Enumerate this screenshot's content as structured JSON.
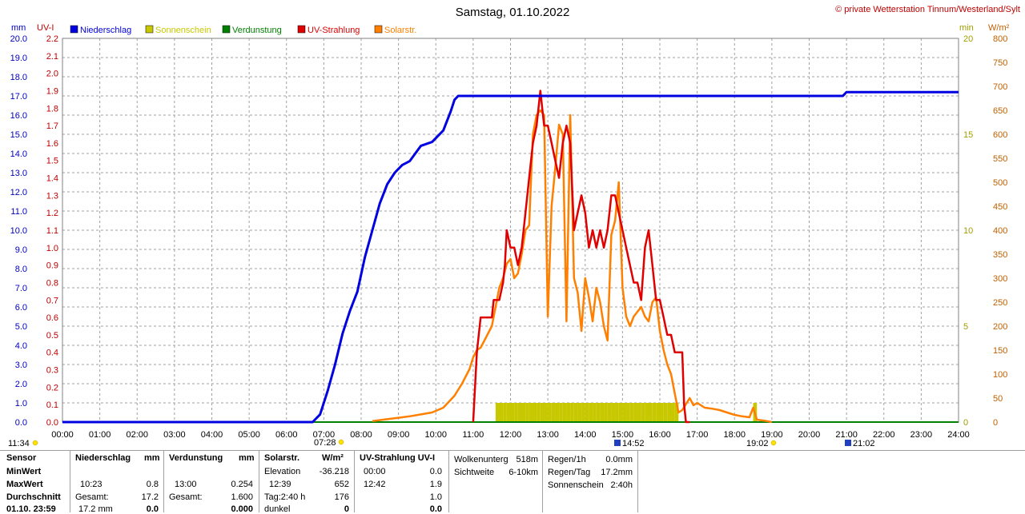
{
  "header": {
    "title": "Samstag, 01.10.2022",
    "copyright": "© private Wetterstation Tinnum/Westerland/Sylt",
    "left_unit_mm": "mm",
    "left_unit_uv": "UV-I",
    "right_unit_min": "min",
    "right_unit_wm2": "W/m²"
  },
  "legend": [
    {
      "label": "Niederschlag",
      "color": "#0000e0"
    },
    {
      "label": "Sonnenschein",
      "color": "#c8c800"
    },
    {
      "label": "Verdunstung",
      "color": "#008000"
    },
    {
      "label": "UV-Strahlung",
      "color": "#e00000"
    },
    {
      "label": "Solarstr.",
      "color": "#ff8000"
    }
  ],
  "chart_data": {
    "type": "line",
    "x_ticks": [
      "00:00",
      "01:00",
      "02:00",
      "03:00",
      "04:00",
      "05:00",
      "06:00",
      "07:00",
      "08:00",
      "09:00",
      "10:00",
      "11:00",
      "12:00",
      "13:00",
      "14:00",
      "15:00",
      "16:00",
      "17:00",
      "18:00",
      "19:00",
      "20:00",
      "21:00",
      "22:00",
      "23:00",
      "24:00"
    ],
    "axis_mm": {
      "min": 0,
      "max": 20,
      "ticks": [
        "0.0",
        "1.0",
        "2.0",
        "3.0",
        "4.0",
        "5.0",
        "6.0",
        "7.0",
        "8.0",
        "9.0",
        "10.0",
        "11.0",
        "12.0",
        "13.0",
        "14.0",
        "15.0",
        "16.0",
        "17.0",
        "18.0",
        "19.0",
        "20.0"
      ]
    },
    "axis_uv": {
      "min": 0,
      "max": 2.2,
      "ticks": [
        "0.0",
        "0.1",
        "0.2",
        "0.3",
        "0.4",
        "0.5",
        "0.6",
        "0.7",
        "0.8",
        "0.9",
        "1.0",
        "1.1",
        "1.2",
        "1.3",
        "1.4",
        "1.5",
        "1.6",
        "1.7",
        "1.8",
        "1.9",
        "2.0",
        "2.1",
        "2.2"
      ]
    },
    "axis_min": {
      "min": 0,
      "max": 20,
      "ticks": [
        "0",
        "5",
        "10",
        "15",
        "20"
      ]
    },
    "axis_wm2": {
      "min": 0,
      "max": 800,
      "ticks": [
        "0",
        "50",
        "100",
        "150",
        "200",
        "250",
        "300",
        "350",
        "400",
        "450",
        "500",
        "550",
        "600",
        "650",
        "700",
        "750",
        "800"
      ]
    },
    "grid": true,
    "series": [
      {
        "name": "Niederschlag",
        "axis": "mm",
        "color": "#0000e0",
        "x": [
          0,
          6.7,
          6.9,
          7.1,
          7.3,
          7.5,
          7.7,
          7.9,
          8.1,
          8.3,
          8.5,
          8.7,
          8.9,
          9.1,
          9.3,
          9.6,
          9.9,
          10.2,
          10.4,
          10.5,
          10.6,
          20.9,
          21.0,
          24.0
        ],
        "values": [
          0,
          0,
          0.4,
          1.6,
          3.0,
          4.6,
          5.8,
          6.8,
          8.6,
          10.0,
          11.4,
          12.4,
          13.0,
          13.4,
          13.6,
          14.4,
          14.6,
          15.2,
          16.2,
          16.8,
          17.0,
          17.0,
          17.2,
          17.2
        ]
      },
      {
        "name": "Solarstr.",
        "axis": "wm2",
        "color": "#ff8000",
        "x": [
          8.3,
          8.7,
          9.0,
          9.3,
          9.6,
          9.9,
          10.2,
          10.5,
          10.7,
          10.9,
          11.0,
          11.1,
          11.2,
          11.3,
          11.5,
          11.7,
          11.8,
          11.9,
          12.0,
          12.1,
          12.2,
          12.3,
          12.4,
          12.5,
          12.6,
          12.7,
          12.8,
          12.9,
          13.0,
          13.1,
          13.2,
          13.3,
          13.4,
          13.5,
          13.6,
          13.7,
          13.8,
          13.9,
          14.0,
          14.1,
          14.2,
          14.3,
          14.4,
          14.5,
          14.6,
          14.7,
          14.8,
          14.9,
          15.0,
          15.1,
          15.2,
          15.3,
          15.4,
          15.5,
          15.6,
          15.7,
          15.8,
          15.9,
          16.0,
          16.1,
          16.2,
          16.3,
          16.4,
          16.5,
          16.6,
          16.8,
          16.9,
          17.0,
          17.2,
          17.4,
          17.6,
          17.8,
          18.0,
          18.2,
          18.4,
          18.5,
          18.6,
          18.8,
          19.0
        ],
        "values": [
          2,
          6,
          9,
          12,
          16,
          20,
          30,
          55,
          80,
          110,
          135,
          150,
          155,
          170,
          200,
          280,
          300,
          330,
          340,
          300,
          310,
          350,
          400,
          410,
          600,
          640,
          650,
          640,
          220,
          450,
          530,
          620,
          600,
          210,
          640,
          300,
          270,
          190,
          300,
          260,
          210,
          280,
          250,
          200,
          170,
          390,
          420,
          500,
          280,
          220,
          200,
          220,
          230,
          240,
          220,
          210,
          250,
          260,
          190,
          150,
          120,
          100,
          60,
          20,
          25,
          50,
          35,
          40,
          30,
          28,
          25,
          20,
          15,
          12,
          10,
          30,
          5,
          3,
          0
        ]
      },
      {
        "name": "UV-Strahlung",
        "axis": "uv",
        "color": "#e00000",
        "x": [
          11.0,
          11.1,
          11.2,
          11.5,
          11.55,
          11.7,
          11.8,
          11.85,
          11.9,
          12.0,
          12.1,
          12.2,
          12.3,
          12.4,
          12.5,
          12.6,
          12.7,
          12.8,
          12.85,
          12.9,
          13.0,
          13.1,
          13.2,
          13.3,
          13.4,
          13.5,
          13.6,
          13.7,
          13.8,
          13.9,
          14.0,
          14.1,
          14.2,
          14.3,
          14.4,
          14.5,
          14.6,
          14.7,
          14.8,
          14.9,
          15.0,
          15.1,
          15.2,
          15.3,
          15.4,
          15.5,
          15.6,
          15.7,
          15.8,
          15.9,
          16.0,
          16.1,
          16.2,
          16.3,
          16.4,
          16.5,
          16.6,
          16.65,
          16.7,
          16.8
        ],
        "values": [
          0,
          0.4,
          0.6,
          0.6,
          0.7,
          0.7,
          0.8,
          0.9,
          1.1,
          1.0,
          1.0,
          0.9,
          1.0,
          1.2,
          1.4,
          1.6,
          1.7,
          1.9,
          1.8,
          1.7,
          1.7,
          1.6,
          1.5,
          1.4,
          1.6,
          1.7,
          1.6,
          1.1,
          1.2,
          1.3,
          1.2,
          1.0,
          1.1,
          1.0,
          1.1,
          1.0,
          1.1,
          1.3,
          1.3,
          1.2,
          1.1,
          1.0,
          0.9,
          0.8,
          0.8,
          0.7,
          1.0,
          1.1,
          0.9,
          0.7,
          0.7,
          0.6,
          0.5,
          0.5,
          0.4,
          0.4,
          0.4,
          0.1,
          0.0,
          0.0
        ]
      },
      {
        "name": "Sonnenschein",
        "axis": "min",
        "color": "#c8c800",
        "type": "bar",
        "x": [
          11.65,
          11.75,
          11.85,
          11.95,
          12.05,
          12.15,
          12.25,
          12.35,
          12.45,
          12.55,
          12.65,
          12.75,
          12.85,
          12.95,
          13.05,
          13.15,
          13.25,
          13.35,
          13.45,
          13.55,
          13.65,
          13.75,
          13.85,
          13.95,
          14.05,
          14.15,
          14.25,
          14.35,
          14.45,
          14.55,
          14.65,
          14.75,
          14.85,
          14.95,
          15.05,
          15.15,
          15.25,
          15.35,
          15.45,
          15.55,
          15.65,
          15.75,
          15.85,
          15.95,
          16.05,
          16.15,
          16.25,
          16.35,
          16.45,
          18.55
        ],
        "values": [
          1,
          1,
          1,
          1,
          1,
          1,
          1,
          1,
          1,
          1,
          1,
          1,
          1,
          1,
          1,
          1,
          1,
          1,
          1,
          1,
          1,
          1,
          1,
          1,
          1,
          1,
          1,
          1,
          1,
          1,
          1,
          1,
          1,
          1,
          1,
          1,
          1,
          1,
          1,
          1,
          1,
          1,
          1,
          1,
          1,
          1,
          1,
          1,
          1,
          1
        ]
      },
      {
        "name": "Verdunstung",
        "axis": "mm",
        "color": "#008000",
        "x": [
          0,
          24
        ],
        "values": [
          0,
          0
        ]
      }
    ]
  },
  "time_markers": {
    "left": "11:34",
    "sunrise": "07:28",
    "solar_noon": "14:52",
    "sunset": "19:02",
    "moon": "21:02"
  },
  "stats": {
    "headers": {
      "sensor": "Sensor",
      "niederschlag": "Niederschlag",
      "mm1": "mm",
      "verdunstung": "Verdunstung",
      "mm2": "mm",
      "solarstr": "Solarstr.",
      "wm2": "W/m²",
      "uv": "UV-Strahlung UV-I"
    },
    "rows": {
      "min": "MinWert",
      "max": "MaxWert",
      "avg": "Durchschnitt",
      "date": "01.10. 23:59"
    },
    "niederschlag": {
      "max_time": "10:23",
      "max_val": "0.8",
      "gesamt_label": "Gesamt:",
      "gesamt_val": "17.2",
      "last": "17.2 mm",
      "last_val": "0.0"
    },
    "verdunstung": {
      "max_time": "13:00",
      "max_val": "0.254",
      "gesamt_label": "Gesamt:",
      "gesamt_val": "1.600",
      "last_val": "0.000"
    },
    "solar": {
      "elevation_label": "Elevation",
      "elevation_val": "-36.218",
      "max_time": "12:39",
      "max_val": "652",
      "tag_label": "Tag:2:40 h",
      "tag_val": "176",
      "dunkel_label": "dunkel",
      "dunkel_val": "0"
    },
    "uv": {
      "min_time": "00:00",
      "min_val": "0.0",
      "max_time": "12:42",
      "max_val": "1.9",
      "avg_val": "1.0",
      "last_val": "0.0"
    },
    "cloud": {
      "label1": "Wolkenunterg",
      "val1": "518m",
      "label2": "Sichtweite",
      "val2": "6-10km"
    },
    "rain": {
      "label1": "Regen/1h",
      "val1": "0.0mm",
      "label2": "Regen/Tag",
      "val2": "17.2mm",
      "label3": "Sonnenschein",
      "val3": "2:40h"
    }
  }
}
